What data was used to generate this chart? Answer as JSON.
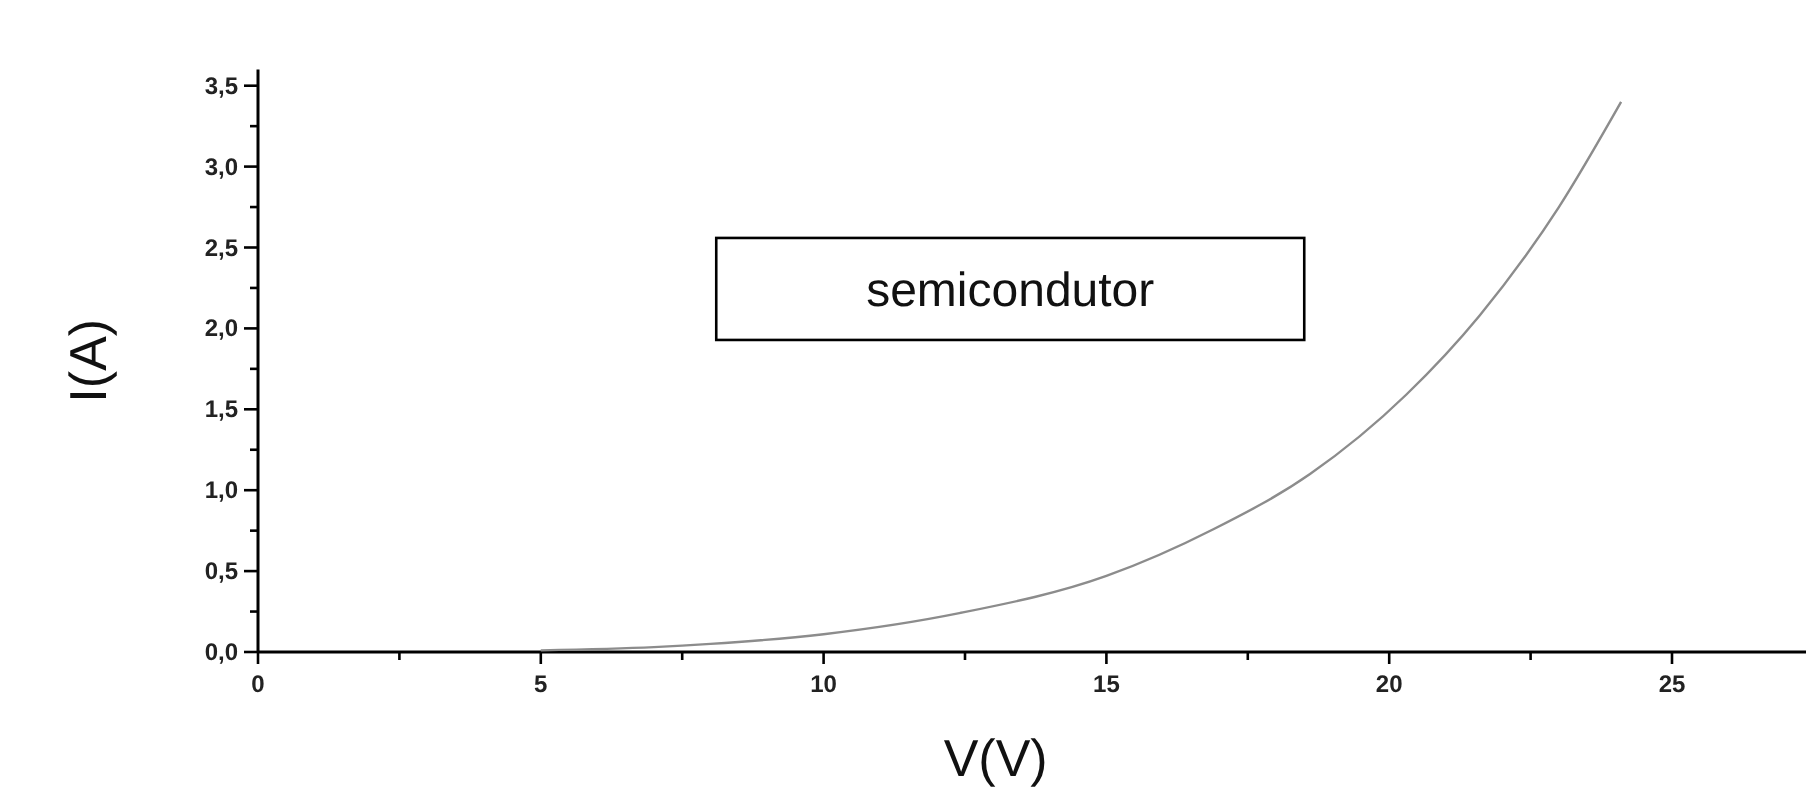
{
  "chart_data": {
    "type": "line",
    "xlabel": "V(V)",
    "ylabel": "I(A)",
    "annotations": [
      "semicondutor"
    ],
    "x": [
      5,
      7,
      8,
      10,
      12.4,
      15,
      16.9,
      18.6,
      20.3,
      21.6,
      23,
      24.1
    ],
    "series": [
      {
        "color": "#8c8c8c",
        "values": [
          0.01,
          0.03,
          0.05,
          0.11,
          0.24,
          0.47,
          0.76,
          1.1,
          1.59,
          2.08,
          2.75,
          3.4
        ]
      }
    ],
    "xlim": [
      0,
      27.5
    ],
    "ylim": [
      0,
      3.6
    ],
    "xticks": [
      0,
      {
        "value": 2.5,
        "label": null
      },
      5,
      {
        "value": 7.5,
        "label": null
      },
      10,
      {
        "value": 12.5,
        "label": null
      },
      15,
      {
        "value": 17.5,
        "label": null
      },
      20,
      {
        "value": 22.5,
        "label": null
      },
      25,
      {
        "value": 27.5,
        "label": null
      }
    ],
    "yticks": [
      {
        "value": 0,
        "label": "0,0"
      },
      {
        "value": 0.25,
        "label": null
      },
      {
        "value": 0.5,
        "label": "0,5"
      },
      {
        "value": 0.75,
        "label": null
      },
      {
        "value": 1,
        "label": "1,0"
      },
      {
        "value": 1.25,
        "label": null
      },
      {
        "value": 1.5,
        "label": "1,5"
      },
      {
        "value": 1.75,
        "label": null
      },
      {
        "value": 2,
        "label": "2,0"
      },
      {
        "value": 2.25,
        "label": null
      },
      {
        "value": 2.5,
        "label": "2,5"
      },
      {
        "value": 2.75,
        "label": null
      },
      {
        "value": 3,
        "label": "3,0"
      },
      {
        "value": 3.25,
        "label": null
      },
      {
        "value": 3.5,
        "label": "3,5"
      }
    ],
    "grid": false,
    "marker": "none",
    "line_style": "solid"
  }
}
